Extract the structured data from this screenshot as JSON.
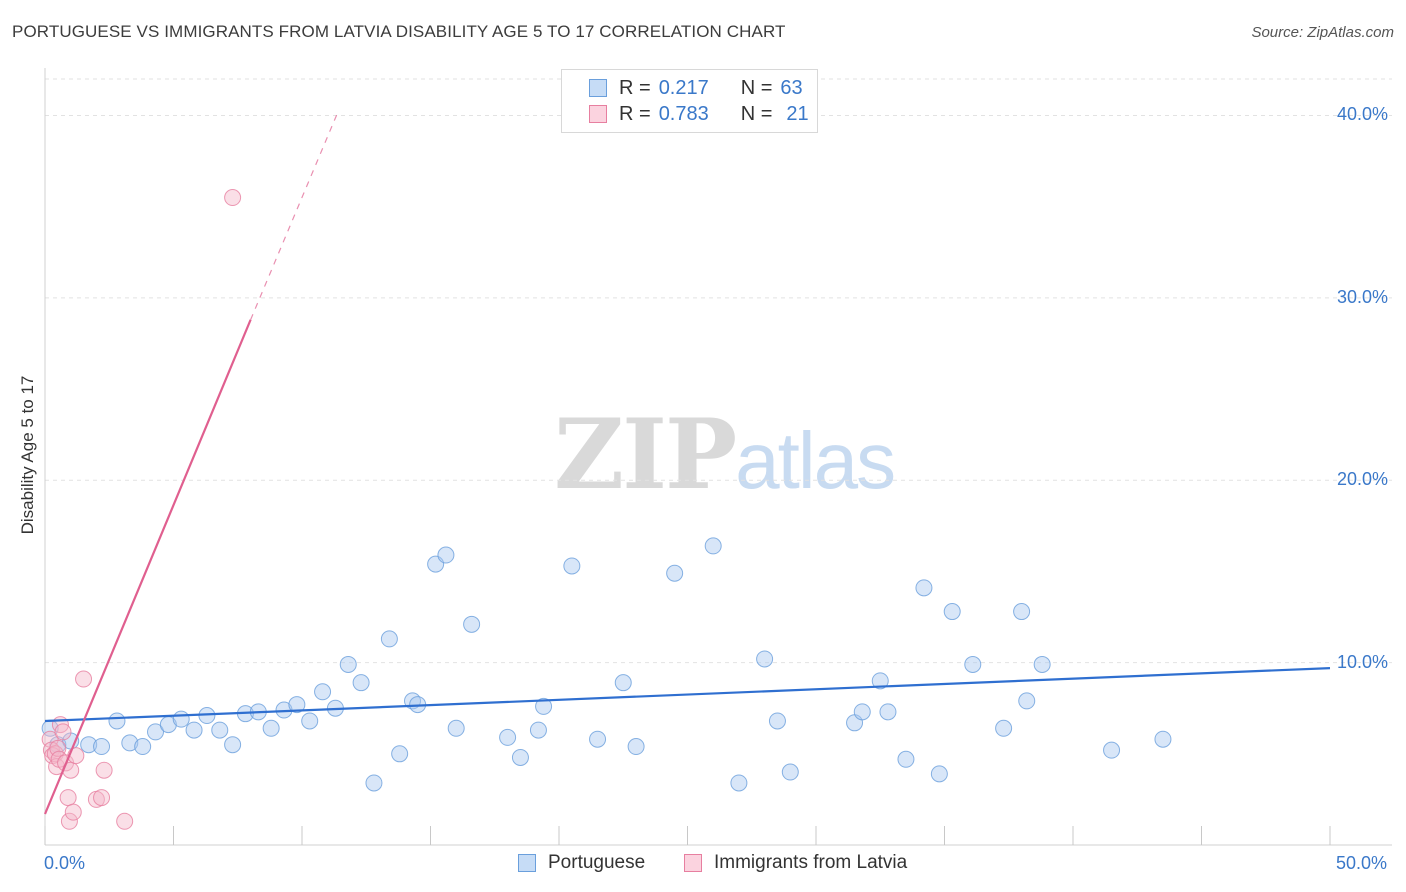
{
  "header": {
    "title": "PORTUGUESE VS IMMIGRANTS FROM LATVIA DISABILITY AGE 5 TO 17 CORRELATION CHART",
    "source": "Source: ZipAtlas.com"
  },
  "watermark": {
    "zip": "ZIP",
    "atlas": "atlas"
  },
  "legend": {
    "rows": [
      {
        "r_label": "R =",
        "r_value": "0.217",
        "n_label": "N =",
        "n_value": "63",
        "color": "#a8c8f0"
      },
      {
        "r_label": "R =",
        "r_value": "0.783",
        "n_label": "N =",
        "n_value": "21",
        "color": "#f5b8c9"
      }
    ]
  },
  "axes": {
    "x_min_label": "0.0%",
    "x_max_label": "50.0%",
    "y_ticks": [
      "10.0%",
      "20.0%",
      "30.0%",
      "40.0%"
    ]
  },
  "chart_data": {
    "type": "scatter",
    "title": "PORTUGUESE VS IMMIGRANTS FROM LATVIA DISABILITY AGE 5 TO 17 CORRELATION CHART",
    "xlabel": "",
    "ylabel": "Disability Age 5 to 17",
    "xlim": [
      0,
      50
    ],
    "ylim": [
      0,
      42
    ],
    "grid": true,
    "legend_position": "top-center",
    "series": [
      {
        "name": "Portuguese",
        "color": "#a8c8f0",
        "stroke": "#6a9fdc",
        "trend": {
          "x0": 0,
          "y0": 6.8,
          "x1": 50,
          "y1": 9.7,
          "color": "#2f6fd0"
        },
        "points": [
          [
            0.2,
            6.4
          ],
          [
            0.5,
            5.5
          ],
          [
            1.0,
            5.7
          ],
          [
            1.7,
            5.5
          ],
          [
            2.2,
            5.4
          ],
          [
            2.8,
            6.8
          ],
          [
            3.3,
            5.6
          ],
          [
            3.8,
            5.4
          ],
          [
            4.3,
            6.2
          ],
          [
            4.8,
            6.6
          ],
          [
            5.3,
            6.9
          ],
          [
            5.8,
            6.3
          ],
          [
            6.3,
            7.1
          ],
          [
            6.8,
            6.3
          ],
          [
            7.3,
            5.5
          ],
          [
            7.8,
            7.2
          ],
          [
            8.3,
            7.3
          ],
          [
            8.8,
            6.4
          ],
          [
            9.3,
            7.4
          ],
          [
            9.8,
            7.7
          ],
          [
            10.3,
            6.8
          ],
          [
            10.8,
            8.4
          ],
          [
            11.3,
            7.5
          ],
          [
            11.8,
            9.9
          ],
          [
            12.3,
            8.9
          ],
          [
            12.8,
            3.4
          ],
          [
            13.4,
            11.3
          ],
          [
            13.8,
            5.0
          ],
          [
            14.3,
            7.9
          ],
          [
            14.5,
            7.7
          ],
          [
            15.2,
            15.4
          ],
          [
            15.6,
            15.9
          ],
          [
            16.0,
            6.4
          ],
          [
            16.6,
            12.1
          ],
          [
            18.0,
            5.9
          ],
          [
            18.5,
            4.8
          ],
          [
            19.2,
            6.3
          ],
          [
            19.4,
            7.6
          ],
          [
            20.5,
            15.3
          ],
          [
            21.5,
            5.8
          ],
          [
            22.5,
            8.9
          ],
          [
            23.0,
            5.4
          ],
          [
            24.5,
            14.9
          ],
          [
            26.0,
            16.4
          ],
          [
            27.0,
            3.4
          ],
          [
            28.0,
            10.2
          ],
          [
            28.5,
            6.8
          ],
          [
            29.0,
            4.0
          ],
          [
            31.5,
            6.7
          ],
          [
            31.8,
            7.3
          ],
          [
            32.5,
            9.0
          ],
          [
            32.8,
            7.3
          ],
          [
            33.5,
            4.7
          ],
          [
            34.2,
            14.1
          ],
          [
            34.8,
            3.9
          ],
          [
            35.3,
            12.8
          ],
          [
            36.1,
            9.9
          ],
          [
            37.3,
            6.4
          ],
          [
            38.0,
            12.8
          ],
          [
            38.2,
            7.9
          ],
          [
            38.8,
            9.9
          ],
          [
            41.5,
            5.2
          ],
          [
            43.5,
            5.8
          ]
        ]
      },
      {
        "name": "Immigrants from Latvia",
        "color": "#f5b8c9",
        "stroke": "#e77fa0",
        "trend": {
          "x0": 0,
          "y0": 1.7,
          "x1": 8.0,
          "y1": 28.8,
          "dash_x1": 11.4,
          "dash_y1": 40.2,
          "color": "#e05f8f"
        },
        "points": [
          [
            0.2,
            5.8
          ],
          [
            0.25,
            5.2
          ],
          [
            0.3,
            4.9
          ],
          [
            0.4,
            5.0
          ],
          [
            0.45,
            4.3
          ],
          [
            0.5,
            5.3
          ],
          [
            0.55,
            4.7
          ],
          [
            0.6,
            6.6
          ],
          [
            0.7,
            6.2
          ],
          [
            0.8,
            4.5
          ],
          [
            0.9,
            2.6
          ],
          [
            0.95,
            1.3
          ],
          [
            1.0,
            4.1
          ],
          [
            1.1,
            1.8
          ],
          [
            1.2,
            4.9
          ],
          [
            1.5,
            9.1
          ],
          [
            2.0,
            2.5
          ],
          [
            2.2,
            2.6
          ],
          [
            2.3,
            4.1
          ],
          [
            3.1,
            1.3
          ],
          [
            7.3,
            35.5
          ]
        ]
      }
    ]
  }
}
